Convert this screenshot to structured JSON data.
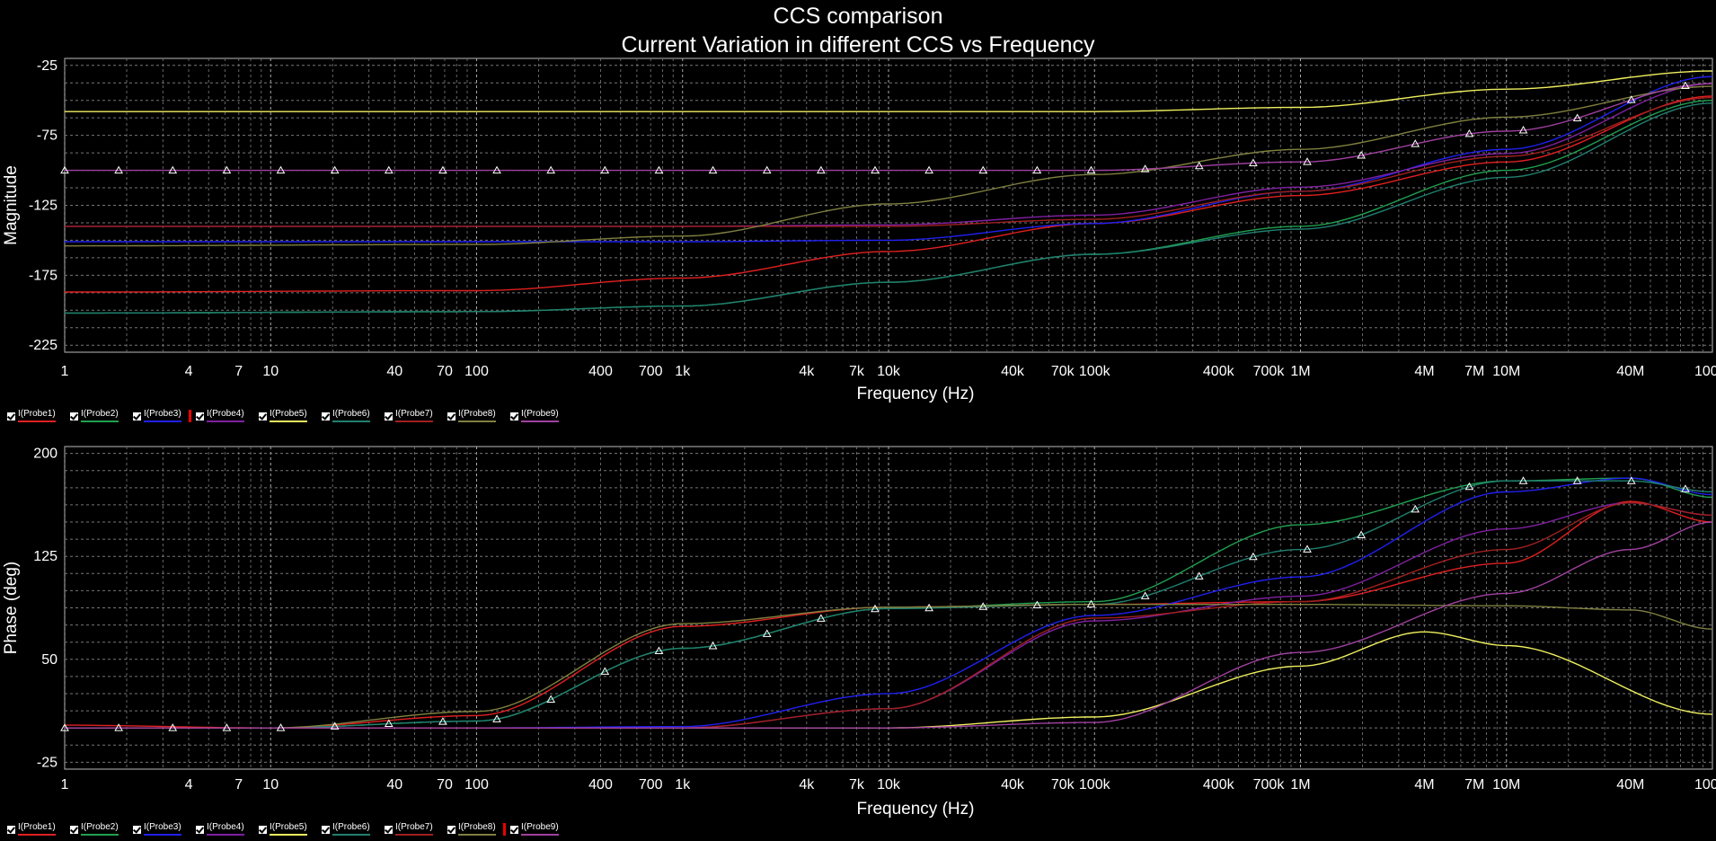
{
  "title_line1": "CCS comparison",
  "title_line2": "Current Variation in different CCS vs Frequency",
  "legend_top": {
    "selected_index": 3
  },
  "legend_bottom": {
    "selected_index": 8
  },
  "chart_data": [
    {
      "type": "line",
      "xscale": "log",
      "xlabel": "Frequency (Hz)",
      "ylabel": "Magnitude",
      "xlim": [
        1,
        100000000
      ],
      "ylim": [
        -230,
        -20
      ],
      "yticks": [
        -25,
        -75,
        -125,
        -175,
        -225
      ],
      "xticks": [
        1,
        4,
        7,
        10,
        40,
        70,
        100,
        400,
        700,
        1000,
        4000,
        7000,
        10000,
        40000,
        70000,
        100000,
        400000,
        700000,
        1000000,
        4000000,
        7000000,
        10000000,
        40000000,
        100000000
      ],
      "xticklabels": [
        "1",
        "4",
        "7",
        "10",
        "40",
        "70",
        "100",
        "400",
        "700",
        "1k",
        "4k",
        "7k",
        "10k",
        "40k",
        "70k",
        "100k",
        "400k",
        "700k",
        "1M",
        "4M",
        "7M",
        "10M",
        "40M",
        "100M"
      ],
      "series": [
        {
          "name": "I(Probe1)",
          "color": "#e02020",
          "x": [
            1,
            100,
            1000,
            10000,
            100000,
            1000000,
            10000000,
            100000000
          ],
          "y": [
            -187,
            -186,
            -177,
            -158,
            -138,
            -118,
            -94,
            -47
          ]
        },
        {
          "name": "I(Probe2)",
          "color": "#20a050",
          "x": [
            1,
            100,
            1000,
            10000,
            100000,
            1000000,
            10000000,
            100000000
          ],
          "y": [
            -202,
            -201,
            -197,
            -180,
            -160,
            -140,
            -100,
            -50
          ]
        },
        {
          "name": "I(Probe3)",
          "color": "#2020f0",
          "x": [
            1,
            100,
            1000,
            10000,
            100000,
            1000000,
            10000000,
            100000000
          ],
          "y": [
            -151,
            -151,
            -151,
            -150,
            -138,
            -115,
            -85,
            -33
          ]
        },
        {
          "name": "I(Probe4)",
          "color": "#8020a0",
          "x": [
            1,
            100,
            1000,
            10000,
            100000,
            1000000,
            10000000,
            100000000
          ],
          "y": [
            -140,
            -140,
            -140,
            -139,
            -132,
            -112,
            -88,
            -38
          ]
        },
        {
          "name": "I(Probe5)",
          "color": "#f0f060",
          "x": [
            1,
            100,
            1000,
            10000,
            100000,
            1000000,
            10000000,
            100000000
          ],
          "y": [
            -58,
            -58,
            -58,
            -58,
            -58,
            -55,
            -42,
            -29
          ]
        },
        {
          "name": "I(Probe6)",
          "color": "#208070",
          "x": [
            1,
            100,
            1000,
            10000,
            100000,
            1000000,
            10000000,
            100000000
          ],
          "y": [
            -202,
            -201,
            -197,
            -180,
            -160,
            -142,
            -105,
            -52
          ]
        },
        {
          "name": "I(Probe7)",
          "color": "#a02020",
          "x": [
            1,
            100,
            1000,
            10000,
            100000,
            1000000,
            10000000,
            100000000
          ],
          "y": [
            -140,
            -140,
            -140,
            -140,
            -135,
            -115,
            -90,
            -48
          ]
        },
        {
          "name": "I(Probe8)",
          "color": "#808040",
          "x": [
            1,
            100,
            1000,
            10000,
            100000,
            1000000,
            10000000,
            100000000
          ],
          "y": [
            -154,
            -153,
            -147,
            -124,
            -103,
            -85,
            -62,
            -40
          ]
        },
        {
          "name": "I(Probe9)",
          "color": "#a040a0",
          "x": [
            1,
            100,
            1000,
            10000,
            100000,
            1000000,
            10000000,
            100000000
          ],
          "y": [
            -100,
            -100,
            -100,
            -100,
            -100,
            -94,
            -72,
            -38
          ],
          "markers": true
        }
      ]
    },
    {
      "type": "line",
      "xscale": "log",
      "xlabel": "Frequency (Hz)",
      "ylabel": "Phase (deg)",
      "xlim": [
        1,
        100000000
      ],
      "ylim": [
        -30,
        205
      ],
      "yticks": [
        200,
        125,
        50,
        -25
      ],
      "xticks": [
        1,
        4,
        7,
        10,
        40,
        70,
        100,
        400,
        700,
        1000,
        4000,
        7000,
        10000,
        40000,
        70000,
        100000,
        400000,
        700000,
        1000000,
        4000000,
        7000000,
        10000000,
        40000000,
        100000000
      ],
      "xticklabels": [
        "1",
        "4",
        "7",
        "10",
        "40",
        "70",
        "100",
        "400",
        "700",
        "1k",
        "4k",
        "7k",
        "10k",
        "40k",
        "70k",
        "100k",
        "400k",
        "700k",
        "1M",
        "4M",
        "7M",
        "10M",
        "40M",
        "100M"
      ],
      "series": [
        {
          "name": "I(Probe1)",
          "color": "#e02020",
          "x": [
            1,
            10,
            100,
            1000,
            10000,
            100000,
            1000000,
            10000000,
            40000000,
            100000000
          ],
          "y": [
            2,
            0,
            9,
            74,
            88,
            90,
            92,
            120,
            165,
            150
          ]
        },
        {
          "name": "I(Probe2)",
          "color": "#20a050",
          "x": [
            1,
            10,
            100,
            1000,
            10000,
            100000,
            1000000,
            10000000,
            40000000,
            100000000
          ],
          "y": [
            0,
            0,
            5,
            58,
            87,
            92,
            148,
            180,
            182,
            168
          ]
        },
        {
          "name": "I(Probe3)",
          "color": "#2020f0",
          "x": [
            1,
            10,
            100,
            1000,
            10000,
            100000,
            1000000,
            10000000,
            40000000,
            100000000
          ],
          "y": [
            0,
            0,
            0,
            1,
            25,
            82,
            110,
            172,
            182,
            170
          ]
        },
        {
          "name": "I(Probe4)",
          "color": "#8020a0",
          "x": [
            1,
            10,
            100,
            1000,
            10000,
            100000,
            1000000,
            10000000,
            40000000,
            100000000
          ],
          "y": [
            0,
            0,
            0,
            0,
            14,
            78,
            96,
            145,
            164,
            155
          ]
        },
        {
          "name": "I(Probe5)",
          "color": "#f0f060",
          "x": [
            1,
            10,
            100,
            1000,
            10000,
            100000,
            1000000,
            4000000,
            10000000,
            100000000
          ],
          "y": [
            0,
            0,
            0,
            0,
            0,
            8,
            45,
            70,
            60,
            10
          ]
        },
        {
          "name": "I(Probe6)",
          "color": "#208070",
          "x": [
            1,
            10,
            100,
            1000,
            10000,
            100000,
            1000000,
            10000000,
            40000000,
            100000000
          ],
          "y": [
            0,
            0,
            5,
            58,
            87,
            90,
            130,
            180,
            180,
            172
          ]
        },
        {
          "name": "I(Probe7)",
          "color": "#a02020",
          "x": [
            1,
            10,
            100,
            1000,
            10000,
            100000,
            1000000,
            10000000,
            40000000,
            100000000
          ],
          "y": [
            0,
            0,
            0,
            0,
            14,
            80,
            92,
            130,
            164,
            155
          ]
        },
        {
          "name": "I(Probe8)",
          "color": "#808040",
          "x": [
            1,
            10,
            100,
            1000,
            10000,
            100000,
            1000000,
            10000000,
            40000000,
            100000000
          ],
          "y": [
            0,
            0,
            12,
            76,
            88,
            90,
            90,
            89,
            86,
            72
          ]
        },
        {
          "name": "I(Probe9)",
          "color": "#a040a0",
          "x": [
            1,
            10,
            100,
            1000,
            10000,
            100000,
            1000000,
            10000000,
            40000000,
            100000000
          ],
          "y": [
            0,
            0,
            0,
            0,
            0,
            4,
            55,
            98,
            130,
            150
          ]
        }
      ]
    }
  ]
}
